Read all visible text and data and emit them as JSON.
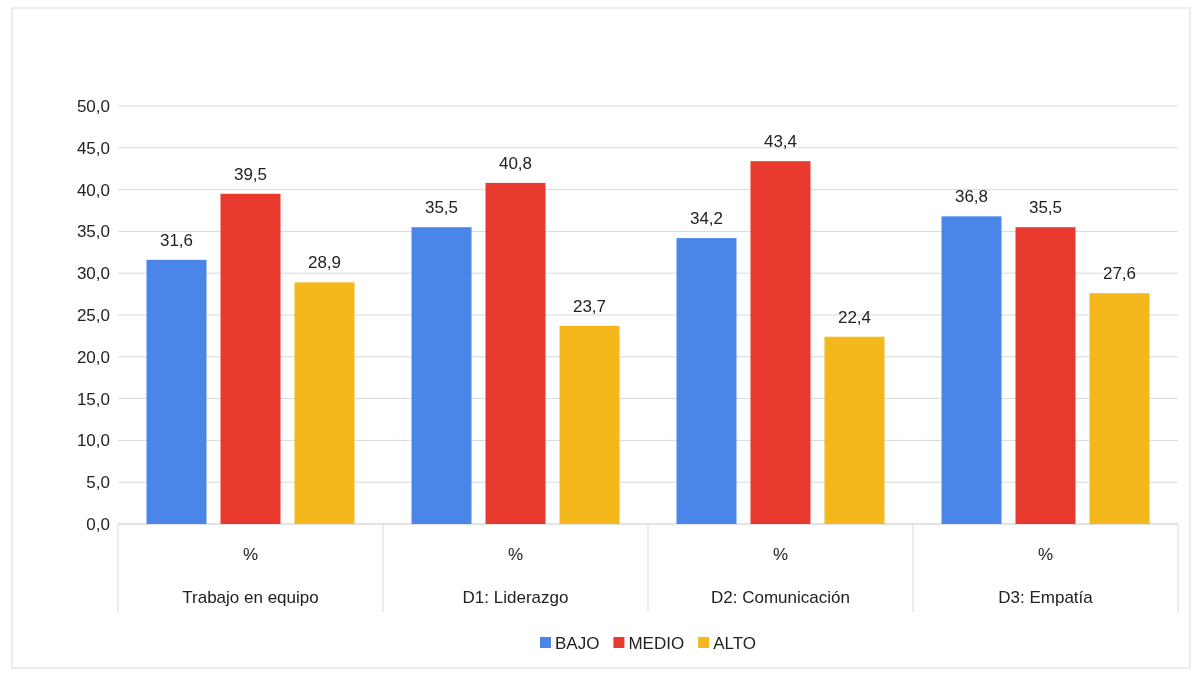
{
  "chart_data": {
    "type": "bar",
    "categories": [
      "%\nTrabajo en equipo",
      "%\nD1: Liderazgo",
      "%\nD2: Comunicación",
      "%\nD3: Empatía"
    ],
    "series": [
      {
        "name": "BAJO",
        "color": "#4a86e8",
        "values": [
          31.6,
          35.5,
          34.2,
          36.8
        ],
        "value_labels": [
          "31,6",
          "35,5",
          "34,2",
          "36,8"
        ]
      },
      {
        "name": "MEDIO",
        "color": "#e8392f",
        "values": [
          39.5,
          40.8,
          43.4,
          35.5
        ],
        "value_labels": [
          "39,5",
          "40,8",
          "43,4",
          "35,5"
        ]
      },
      {
        "name": "ALTO",
        "color": "#f4b81c",
        "values": [
          28.9,
          23.7,
          22.4,
          27.6
        ],
        "value_labels": [
          "28,9",
          "23,7",
          "22,4",
          "27,6"
        ]
      }
    ],
    "ylim": [
      0,
      50
    ],
    "yticks": [
      {
        "value": 0,
        "label": "0,0"
      },
      {
        "value": 5,
        "label": "5,0"
      },
      {
        "value": 10,
        "label": "10,0"
      },
      {
        "value": 15,
        "label": "15,0"
      },
      {
        "value": 20,
        "label": "20,0"
      },
      {
        "value": 25,
        "label": "25,0"
      },
      {
        "value": 30,
        "label": "30,0"
      },
      {
        "value": 35,
        "label": "35,0"
      },
      {
        "value": 40,
        "label": "40,0"
      },
      {
        "value": 45,
        "label": "45,0"
      },
      {
        "value": 50,
        "label": "50,0"
      }
    ],
    "grid": "y",
    "legend": "bottom"
  }
}
